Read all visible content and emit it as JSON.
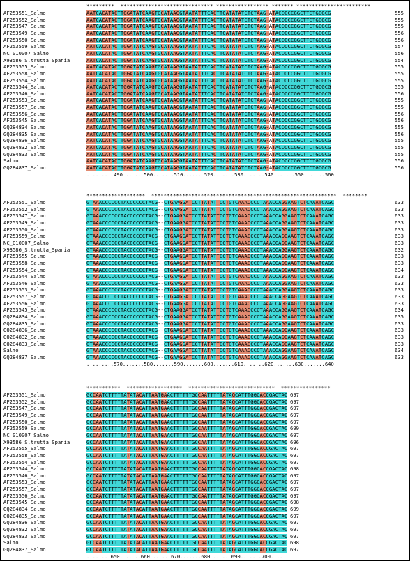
{
  "names": [
    "AF253551_Salmo",
    "AF253552_Salmo",
    "AF253547_Salmo",
    "AF253549_Salmo",
    "AF253550_Salmo",
    "AF253559_Salmo",
    "NC_010007_Salmo",
    "X93586_S.trutta_Spania",
    "AF253555_Salmo",
    "AF253558_Salmo",
    "AF253554_Salmo",
    "AF253544_Salmo",
    "AF253546_Salmo",
    "AF253553_Salmo",
    "AF253557_Salmo",
    "AF253556_Salmo",
    "AF253545_Salmo",
    "GQ284834_Salmo",
    "GQ284835_Salmo",
    "GQ284836_Salmo",
    "GQ284832_Salmo",
    "GQ284833_Salmo",
    "Salmo",
    "GQ284837_Salmo"
  ],
  "blocks": [
    {
      "consensus_stars": "*********  ****************************** ***************** ******* ************************",
      "ruler": ".........490.......500.......510.......520.......530.......540.......550.......560",
      "base_seq": "AATCACATACTTGGATATCAAGTGCATAAGGTAATATTTCACTTCATATATCTCTAAG-ATACCCCCGGCTTCTGCGCG",
      "color_mask": "sssccssscsccssscscsccsccscscssccscscsccccscccscscscccccsccs-scccccccccccccccccc",
      "lengths": [
        "555",
        "555",
        "555",
        "556",
        "556",
        "557",
        "556",
        "554",
        "555",
        "555",
        "555",
        "555",
        "556",
        "555",
        "555",
        "556",
        "556",
        "555",
        "556",
        "555",
        "555",
        "555",
        "556",
        "556"
      ]
    },
    {
      "consensus_stars": "*******************  ************************************************************  ********",
      "ruler": ".........570.......580.......590.......600.......610.......620.......630.......640",
      "base_seq": "GTAAACCCCCCTACCCCCCTACG--CTGAAGGATCCTTATATTCCTGTCAAACCCCTAAACCAGGAAGTCTCAAATCAGC",
      "color_mask": "ccssccccccccccccccccccc--ccsccscsscccscsccsccscccsssscccccsccccsscsscsscccsscccc",
      "lengths": [
        "633",
        "633",
        "633",
        "633",
        "633",
        "633",
        "633",
        "632",
        "633",
        "633",
        "634",
        "633",
        "633",
        "633",
        "633",
        "633",
        "634",
        "635",
        "633",
        "633",
        "633",
        "633",
        "634",
        "633"
      ]
    },
    {
      "consensus_stars": "***********  ******************  ****************************  ****************",
      "ruler": "........650.......660.......670.......680.......690.......700....",
      "base_seq": "GCCAATCTTTTTATATACATTAATGAACTTTTTTGCCAATTTTTATAGCATTTGGCACCGACTAC",
      "color_mask": "ccsssccccccccsccsscccsscssccccccccccssscccccsccsccccccccssccccccc",
      "lengths": [
        "697",
        "697",
        "697",
        "697",
        "697",
        "699",
        "697",
        "696",
        "697",
        "697",
        "697",
        "698",
        "697",
        "697",
        "697",
        "697",
        "698",
        "699",
        "697",
        "697",
        "697",
        "697",
        "698",
        "697"
      ]
    }
  ],
  "colors": {
    "conserved": "#40d8d8",
    "salmon": "#e18a70"
  }
}
